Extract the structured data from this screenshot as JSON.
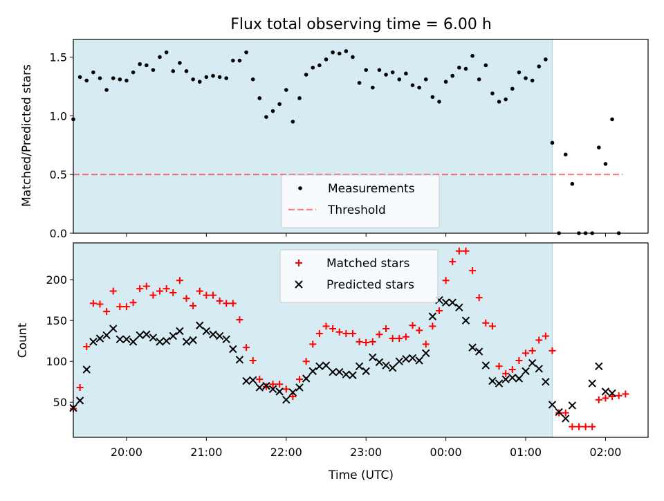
{
  "chart_data": {
    "type": "scatter",
    "title": "Flux total observing time = 6.00 h",
    "xlabel": "Time (UTC)",
    "xlim": [
      "19:20",
      "02:32"
    ],
    "x_ticks": [
      "20:00",
      "21:00",
      "22:00",
      "23:00",
      "00:00",
      "01:00",
      "02:00"
    ],
    "observing_window": [
      "19:20",
      "01:20"
    ],
    "colors": {
      "window": "#add8e6",
      "matched": "#ff0000",
      "predicted": "#000000",
      "threshold": "#ff0000",
      "measurements": "#000000"
    },
    "panels": [
      {
        "ylabel": "Matched/Predicted stars",
        "ylim": [
          0,
          1.65
        ],
        "y_ticks": [
          "0.0",
          "0.5",
          "1.0",
          "1.5"
        ],
        "legend_position": "lower center",
        "threshold": {
          "name": "Threshold",
          "value": 0.5,
          "x_range": [
            "19:20",
            "02:13"
          ]
        },
        "series": [
          {
            "name": "Measurements",
            "marker": "dot",
            "x": [
              "19:20",
              "19:25",
              "19:30",
              "19:35",
              "19:40",
              "19:45",
              "19:50",
              "19:55",
              "20:00",
              "20:05",
              "20:10",
              "20:15",
              "20:20",
              "20:25",
              "20:30",
              "20:35",
              "20:40",
              "20:45",
              "20:50",
              "20:55",
              "21:00",
              "21:05",
              "21:10",
              "21:15",
              "21:20",
              "21:25",
              "21:30",
              "21:35",
              "21:40",
              "21:45",
              "21:50",
              "21:55",
              "22:00",
              "22:05",
              "22:10",
              "22:15",
              "22:20",
              "22:25",
              "22:30",
              "22:35",
              "22:40",
              "22:45",
              "22:50",
              "22:55",
              "23:00",
              "23:05",
              "23:10",
              "23:15",
              "23:20",
              "23:25",
              "23:30",
              "23:35",
              "23:40",
              "23:45",
              "23:50",
              "23:55",
              "00:00",
              "00:05",
              "00:10",
              "00:15",
              "00:20",
              "00:25",
              "00:30",
              "00:35",
              "00:40",
              "00:45",
              "00:50",
              "00:55",
              "01:00",
              "01:05",
              "01:10",
              "01:15",
              "01:20",
              "01:25",
              "01:30",
              "01:35",
              "01:40",
              "01:45",
              "01:50",
              "01:55",
              "02:00",
              "02:05",
              "02:10"
            ],
            "values": [
              0.97,
              1.33,
              1.3,
              1.37,
              1.32,
              1.22,
              1.32,
              1.31,
              1.3,
              1.37,
              1.44,
              1.43,
              1.39,
              1.5,
              1.54,
              1.38,
              1.45,
              1.38,
              1.31,
              1.29,
              1.33,
              1.34,
              1.33,
              1.32,
              1.47,
              1.47,
              1.54,
              1.31,
              1.15,
              0.99,
              1.04,
              1.1,
              1.22,
              0.95,
              1.15,
              1.35,
              1.41,
              1.43,
              1.48,
              1.54,
              1.53,
              1.55,
              1.5,
              1.28,
              1.39,
              1.24,
              1.39,
              1.35,
              1.37,
              1.31,
              1.36,
              1.26,
              1.24,
              1.31,
              1.16,
              1.12,
              1.29,
              1.34,
              1.41,
              1.4,
              1.51,
              1.31,
              1.43,
              1.19,
              1.12,
              1.14,
              1.23,
              1.37,
              1.32,
              1.3,
              1.42,
              1.48,
              0.77,
              0.0,
              0.67,
              0.42,
              0.0,
              0.0,
              0.0,
              0.73,
              0.59,
              0.97,
              0.0
            ]
          }
        ]
      },
      {
        "ylabel": "Count",
        "ylim": [
          7,
          245
        ],
        "y_ticks": [
          "50",
          "100",
          "150",
          "200"
        ],
        "legend_position": "upper center",
        "series": [
          {
            "name": "Matched stars",
            "marker": "plus",
            "x": [
              "19:20",
              "19:25",
              "19:30",
              "19:35",
              "19:40",
              "19:45",
              "19:50",
              "19:55",
              "20:00",
              "20:05",
              "20:10",
              "20:15",
              "20:20",
              "20:25",
              "20:30",
              "20:35",
              "20:40",
              "20:45",
              "20:50",
              "20:55",
              "21:00",
              "21:05",
              "21:10",
              "21:15",
              "21:20",
              "21:25",
              "21:30",
              "21:35",
              "21:40",
              "21:45",
              "21:50",
              "21:55",
              "22:00",
              "22:05",
              "22:10",
              "22:15",
              "22:20",
              "22:25",
              "22:30",
              "22:35",
              "22:40",
              "22:45",
              "22:50",
              "22:55",
              "23:00",
              "23:05",
              "23:10",
              "23:15",
              "23:20",
              "23:25",
              "23:30",
              "23:35",
              "23:40",
              "23:45",
              "23:50",
              "23:55",
              "00:00",
              "00:05",
              "00:10",
              "00:15",
              "00:20",
              "00:25",
              "00:30",
              "00:35",
              "00:40",
              "00:45",
              "00:50",
              "00:55",
              "01:00",
              "01:05",
              "01:10",
              "01:15",
              "01:20",
              "01:25",
              "01:30",
              "01:35",
              "01:40",
              "01:45",
              "01:50",
              "01:55",
              "02:00",
              "02:05",
              "02:10",
              "02:15"
            ],
            "values": [
              42,
              68,
              118,
              171,
              170,
              161,
              186,
              167,
              167,
              172,
              189,
              192,
              181,
              186,
              189,
              184,
              199,
              177,
              168,
              186,
              181,
              181,
              174,
              171,
              171,
              151,
              117,
              101,
              78,
              69,
              72,
              72,
              66,
              57,
              78,
              100,
              121,
              134,
              143,
              140,
              136,
              134,
              134,
              124,
              123,
              124,
              133,
              140,
              128,
              128,
              130,
              144,
              138,
              121,
              143,
              162,
              199,
              222,
              235,
              235,
              211,
              178,
              147,
              143,
              94,
              85,
              90,
              101,
              110,
              113,
              126,
              131,
              113,
              37,
              37,
              20,
              20,
              20,
              20,
              53,
              55,
              57,
              58,
              60
            ]
          },
          {
            "name": "Predicted stars",
            "marker": "x",
            "x": [
              "19:20",
              "19:25",
              "19:30",
              "19:35",
              "19:40",
              "19:45",
              "19:50",
              "19:55",
              "20:00",
              "20:05",
              "20:10",
              "20:15",
              "20:20",
              "20:25",
              "20:30",
              "20:35",
              "20:40",
              "20:45",
              "20:50",
              "20:55",
              "21:00",
              "21:05",
              "21:10",
              "21:15",
              "21:20",
              "21:25",
              "21:30",
              "21:35",
              "21:40",
              "21:45",
              "21:50",
              "21:55",
              "22:00",
              "22:05",
              "22:10",
              "22:15",
              "22:20",
              "22:25",
              "22:30",
              "22:35",
              "22:40",
              "22:45",
              "22:50",
              "22:55",
              "23:00",
              "23:05",
              "23:10",
              "23:15",
              "23:20",
              "23:25",
              "23:30",
              "23:35",
              "23:40",
              "23:45",
              "23:50",
              "23:55",
              "00:00",
              "00:05",
              "00:10",
              "00:15",
              "00:20",
              "00:25",
              "00:30",
              "00:35",
              "00:40",
              "00:45",
              "00:50",
              "00:55",
              "01:00",
              "01:05",
              "01:10",
              "01:15",
              "01:20",
              "01:25",
              "01:30",
              "01:35",
              "01:50",
              "01:55",
              "02:00",
              "02:05"
            ],
            "values": [
              43,
              52,
              90,
              124,
              128,
              132,
              140,
              127,
              127,
              124,
              132,
              133,
              129,
              124,
              125,
              131,
              137,
              124,
              126,
              144,
              137,
              133,
              131,
              127,
              115,
              102,
              76,
              77,
              68,
              70,
              66,
              63,
              53,
              62,
              68,
              79,
              88,
              94,
              95,
              87,
              87,
              84,
              83,
              94,
              88,
              105,
              99,
              95,
              92,
              100,
              103,
              104,
              101,
              110,
              155,
              175,
              172,
              172,
              166,
              150,
              117,
              112,
              95,
              76,
              73,
              78,
              80,
              79,
              88,
              98,
              91,
              75,
              47,
              38,
              30,
              46,
              73,
              94,
              63,
              61
            ]
          }
        ]
      }
    ]
  }
}
